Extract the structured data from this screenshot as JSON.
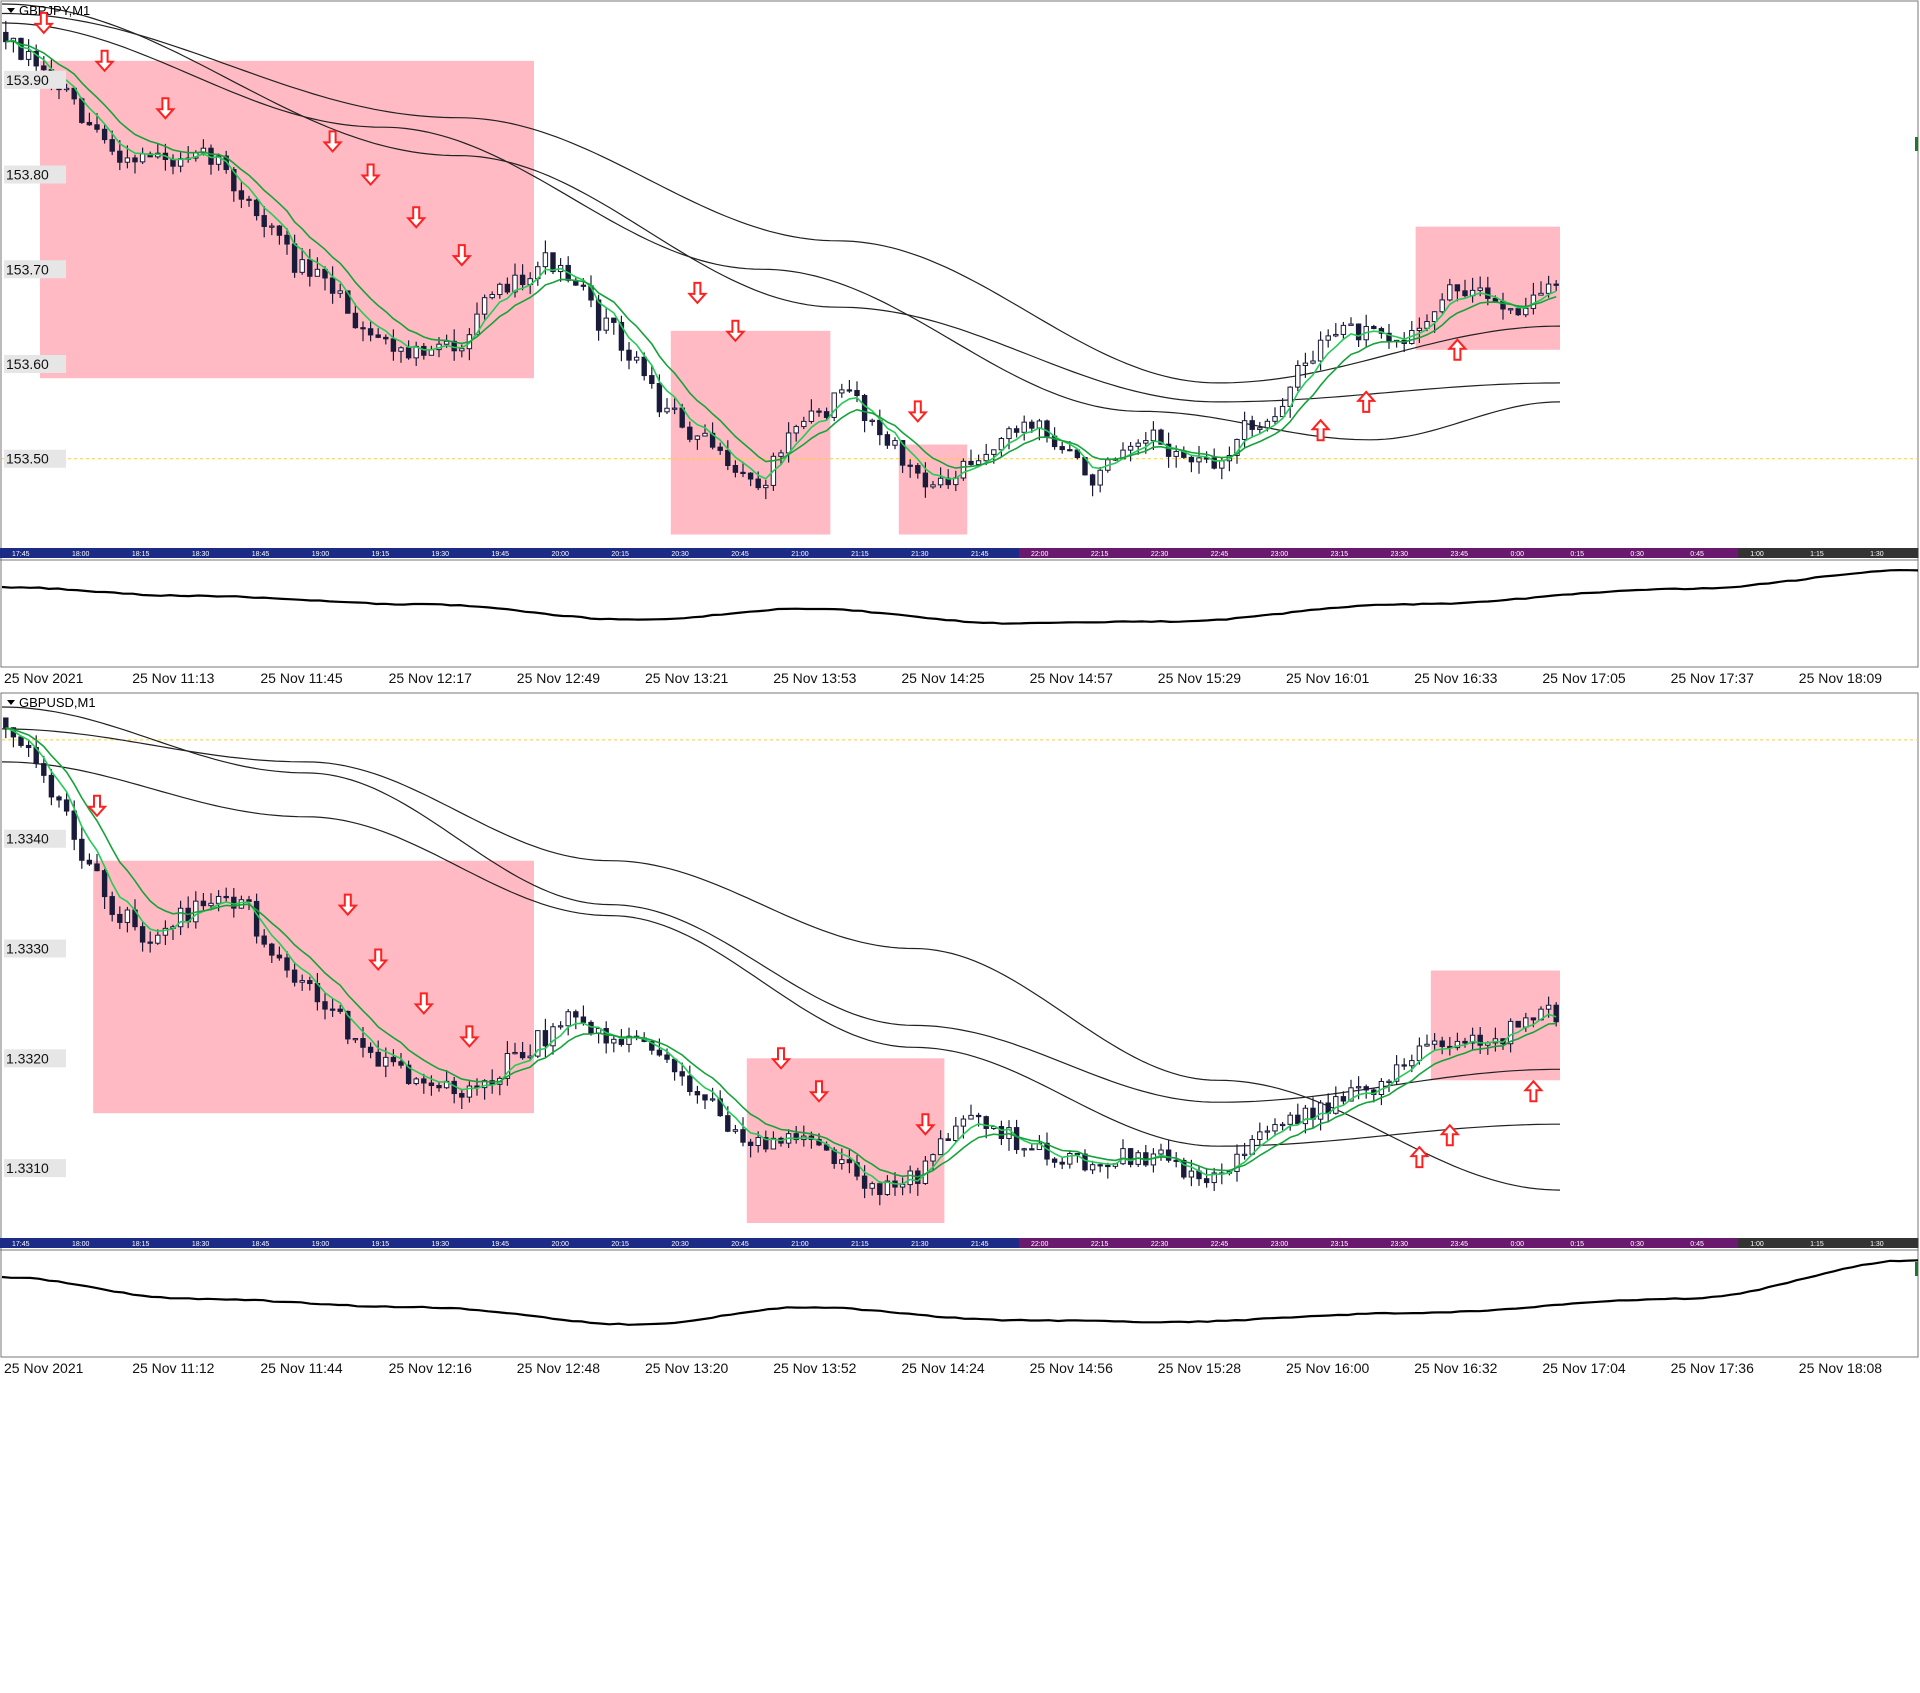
{
  "colors": {
    "background": "#ffffff",
    "candle": "#1a1a3a",
    "ema_fast": "#22cc55",
    "ema_slow": "#15a33a",
    "moving_average": "#222222",
    "zone": "#ffb6c1",
    "arrow": "#ff2020",
    "price_line": "#ffcc33",
    "session_bar_a": "#1c2c86",
    "session_bar_b": "#6a1a6e",
    "session_bar_c": "#333333",
    "oscillator": "#000000"
  },
  "chart_data": [
    {
      "type": "candlestick",
      "title": "GBPJPY,M1",
      "ylim": [
        153.41,
        153.98
      ],
      "yticks": [
        "153.90",
        "153.80",
        "153.70",
        "153.60",
        "153.50"
      ],
      "ytick_values": [
        153.9,
        153.8,
        153.7,
        153.6,
        153.5
      ],
      "price_line": 153.5,
      "session_ticks": [
        "17:45",
        "18:00",
        "18:15",
        "18:30",
        "18:45",
        "19:00",
        "19:15",
        "19:30",
        "19:45",
        "20:00",
        "20:15",
        "20:30",
        "20:45",
        "21:00",
        "21:15",
        "21:30",
        "21:45",
        "22:00",
        "22:15",
        "22:30",
        "22:45",
        "23:00",
        "23:15",
        "23:30",
        "23:45",
        "0:00",
        "0:15",
        "0:30",
        "0:45",
        "1:00",
        "1:15",
        "1:30"
      ],
      "close_path": [
        [
          0,
          153.95
        ],
        [
          4,
          153.92
        ],
        [
          8,
          153.89
        ],
        [
          12,
          153.85
        ],
        [
          16,
          153.82
        ],
        [
          20,
          153.82
        ],
        [
          24,
          153.81
        ],
        [
          28,
          153.82
        ],
        [
          32,
          153.78
        ],
        [
          36,
          153.74
        ],
        [
          40,
          153.7
        ],
        [
          44,
          153.68
        ],
        [
          48,
          153.64
        ],
        [
          52,
          153.62
        ],
        [
          56,
          153.61
        ],
        [
          60,
          153.62
        ],
        [
          64,
          153.66
        ],
        [
          68,
          153.69
        ],
        [
          72,
          153.71
        ],
        [
          76,
          153.68
        ],
        [
          80,
          153.64
        ],
        [
          84,
          153.6
        ],
        [
          88,
          153.55
        ],
        [
          92,
          153.52
        ],
        [
          96,
          153.5
        ],
        [
          100,
          153.47
        ],
        [
          104,
          153.52
        ],
        [
          108,
          153.55
        ],
        [
          112,
          153.57
        ],
        [
          116,
          153.53
        ],
        [
          120,
          153.49
        ],
        [
          124,
          153.47
        ],
        [
          128,
          153.49
        ],
        [
          132,
          153.52
        ],
        [
          136,
          153.54
        ],
        [
          140,
          153.51
        ],
        [
          144,
          153.48
        ],
        [
          148,
          153.5
        ],
        [
          152,
          153.52
        ],
        [
          156,
          153.5
        ],
        [
          160,
          153.49
        ],
        [
          164,
          153.53
        ],
        [
          168,
          153.55
        ],
        [
          172,
          153.6
        ],
        [
          176,
          153.64
        ],
        [
          180,
          153.63
        ],
        [
          184,
          153.62
        ],
        [
          188,
          153.65
        ],
        [
          192,
          153.68
        ],
        [
          196,
          153.67
        ],
        [
          200,
          153.66
        ],
        [
          204,
          153.68
        ]
      ],
      "moving_averages": [
        [
          [
            0,
            153.98
          ],
          [
            60,
            153.82
          ],
          [
            110,
            153.66
          ],
          [
            160,
            153.56
          ],
          [
            205,
            153.58
          ]
        ],
        [
          [
            0,
            153.96
          ],
          [
            50,
            153.85
          ],
          [
            100,
            153.7
          ],
          [
            150,
            153.55
          ],
          [
            180,
            153.52
          ],
          [
            205,
            153.56
          ]
        ],
        [
          [
            0,
            153.97
          ],
          [
            60,
            153.86
          ],
          [
            110,
            153.73
          ],
          [
            160,
            153.58
          ],
          [
            205,
            153.64
          ]
        ]
      ],
      "zones": [
        {
          "start": 5,
          "end": 70,
          "top": 153.92,
          "bottom": 153.585
        },
        {
          "start": 88,
          "end": 109,
          "top": 153.635,
          "bottom": 153.42
        },
        {
          "start": 118,
          "end": 127,
          "top": 153.515,
          "bottom": 153.42
        },
        {
          "start": 186,
          "end": 205,
          "top": 153.745,
          "bottom": 153.615
        }
      ],
      "down_arrows": [
        [
          5,
          153.96
        ],
        [
          13,
          153.92
        ],
        [
          21,
          153.87
        ],
        [
          43,
          153.835
        ],
        [
          48,
          153.8
        ],
        [
          54,
          153.755
        ],
        [
          60,
          153.715
        ],
        [
          91,
          153.675
        ],
        [
          96,
          153.635
        ],
        [
          120,
          153.55
        ]
      ],
      "up_arrows": [
        [
          173,
          153.53
        ],
        [
          179,
          153.56
        ],
        [
          191,
          153.615
        ]
      ],
      "oscillator": [
        [
          0,
          0.2
        ],
        [
          20,
          0.3
        ],
        [
          45,
          0.4
        ],
        [
          68,
          0.58
        ],
        [
          86,
          0.45
        ],
        [
          108,
          0.62
        ],
        [
          125,
          0.6
        ],
        [
          150,
          0.4
        ],
        [
          180,
          0.22
        ],
        [
          205,
          0.0
        ]
      ],
      "time_labels": [
        "25 Nov 2021",
        "25 Nov 11:13",
        "25 Nov 11:45",
        "25 Nov 12:17",
        "25 Nov 12:49",
        "25 Nov 13:21",
        "25 Nov 13:53",
        "25 Nov 14:25",
        "25 Nov 14:57",
        "25 Nov 15:29",
        "25 Nov 16:01",
        "25 Nov 16:33",
        "25 Nov 17:05",
        "25 Nov 17:37",
        "25 Nov 18:09"
      ]
    },
    {
      "type": "candlestick",
      "title": "GBPUSD,M1",
      "ylim": [
        1.3304,
        1.3353
      ],
      "yticks": [
        "1.3340",
        "1.3330",
        "1.3320",
        "1.3310"
      ],
      "ytick_values": [
        1.334,
        1.333,
        1.332,
        1.331
      ],
      "price_line": 1.3349,
      "session_ticks": [
        "17:45",
        "18:00",
        "18:15",
        "18:30",
        "18:45",
        "19:00",
        "19:15",
        "19:30",
        "19:45",
        "20:00",
        "20:15",
        "20:30",
        "20:45",
        "21:00",
        "21:15",
        "21:30",
        "21:45",
        "22:00",
        "22:15",
        "22:30",
        "22:45",
        "23:00",
        "23:15",
        "23:30",
        "23:45",
        "0:00",
        "0:15",
        "0:30",
        "0:45",
        "1:00",
        "1:15",
        "1:30"
      ],
      "close_path": [
        [
          0,
          1.3351
        ],
        [
          4,
          1.3348
        ],
        [
          8,
          1.3344
        ],
        [
          12,
          1.3337
        ],
        [
          16,
          1.3333
        ],
        [
          20,
          1.3331
        ],
        [
          24,
          1.3333
        ],
        [
          28,
          1.3335
        ],
        [
          32,
          1.3334
        ],
        [
          36,
          1.333
        ],
        [
          40,
          1.3327
        ],
        [
          44,
          1.3324
        ],
        [
          48,
          1.3321
        ],
        [
          52,
          1.3319
        ],
        [
          56,
          1.3318
        ],
        [
          60,
          1.3317
        ],
        [
          64,
          1.3318
        ],
        [
          68,
          1.332
        ],
        [
          72,
          1.3322
        ],
        [
          76,
          1.3324
        ],
        [
          80,
          1.3322
        ],
        [
          84,
          1.3321
        ],
        [
          88,
          1.332
        ],
        [
          92,
          1.3317
        ],
        [
          96,
          1.3314
        ],
        [
          100,
          1.3312
        ],
        [
          104,
          1.3313
        ],
        [
          108,
          1.3312
        ],
        [
          112,
          1.331
        ],
        [
          116,
          1.3308
        ],
        [
          120,
          1.3309
        ],
        [
          124,
          1.3312
        ],
        [
          128,
          1.3314
        ],
        [
          132,
          1.3313
        ],
        [
          136,
          1.3312
        ],
        [
          140,
          1.3311
        ],
        [
          144,
          1.331
        ],
        [
          148,
          1.3311
        ],
        [
          152,
          1.3311
        ],
        [
          156,
          1.331
        ],
        [
          160,
          1.3309
        ],
        [
          164,
          1.3312
        ],
        [
          168,
          1.3314
        ],
        [
          172,
          1.3315
        ],
        [
          176,
          1.3316
        ],
        [
          180,
          1.3317
        ],
        [
          184,
          1.3319
        ],
        [
          188,
          1.3321
        ],
        [
          192,
          1.3322
        ],
        [
          196,
          1.3321
        ],
        [
          200,
          1.3323
        ],
        [
          204,
          1.3324
        ]
      ],
      "moving_averages": [
        [
          [
            0,
            1.335
          ],
          [
            40,
            1.3347
          ],
          [
            80,
            1.3338
          ],
          [
            120,
            1.333
          ],
          [
            160,
            1.3318
          ],
          [
            205,
            1.3308
          ]
        ],
        [
          [
            0,
            1.3347
          ],
          [
            40,
            1.3342
          ],
          [
            80,
            1.3333
          ],
          [
            120,
            1.3321
          ],
          [
            160,
            1.3312
          ],
          [
            205,
            1.3314
          ]
        ],
        [
          [
            0,
            1.3352
          ],
          [
            40,
            1.3346
          ],
          [
            80,
            1.3334
          ],
          [
            120,
            1.3323
          ],
          [
            160,
            1.3316
          ],
          [
            205,
            1.3319
          ]
        ]
      ],
      "zones": [
        {
          "start": 12,
          "end": 70,
          "top": 1.3338,
          "bottom": 1.3315
        },
        {
          "start": 98,
          "end": 124,
          "top": 1.332,
          "bottom": 1.3305
        },
        {
          "start": 188,
          "end": 205,
          "top": 1.3328,
          "bottom": 1.3318
        }
      ],
      "down_arrows": [
        [
          12,
          1.3343
        ],
        [
          45,
          1.3334
        ],
        [
          49,
          1.3329
        ],
        [
          55,
          1.3325
        ],
        [
          61,
          1.3322
        ],
        [
          102,
          1.332
        ],
        [
          107,
          1.3317
        ],
        [
          121,
          1.3314
        ]
      ],
      "up_arrows": [
        [
          186,
          1.3311
        ],
        [
          190,
          1.3313
        ],
        [
          201,
          1.3317
        ]
      ],
      "oscillator": [
        [
          0,
          0.2
        ],
        [
          20,
          0.45
        ],
        [
          45,
          0.55
        ],
        [
          68,
          0.75
        ],
        [
          86,
          0.55
        ],
        [
          108,
          0.7
        ],
        [
          125,
          0.72
        ],
        [
          150,
          0.62
        ],
        [
          180,
          0.45
        ],
        [
          205,
          0.0
        ]
      ],
      "time_labels": [
        "25 Nov 2021",
        "25 Nov 11:12",
        "25 Nov 11:44",
        "25 Nov 12:16",
        "25 Nov 12:48",
        "25 Nov 13:20",
        "25 Nov 13:52",
        "25 Nov 14:24",
        "25 Nov 14:56",
        "25 Nov 15:28",
        "25 Nov 16:00",
        "25 Nov 16:32",
        "25 Nov 17:04",
        "25 Nov 17:36",
        "25 Nov 18:08"
      ]
    }
  ]
}
